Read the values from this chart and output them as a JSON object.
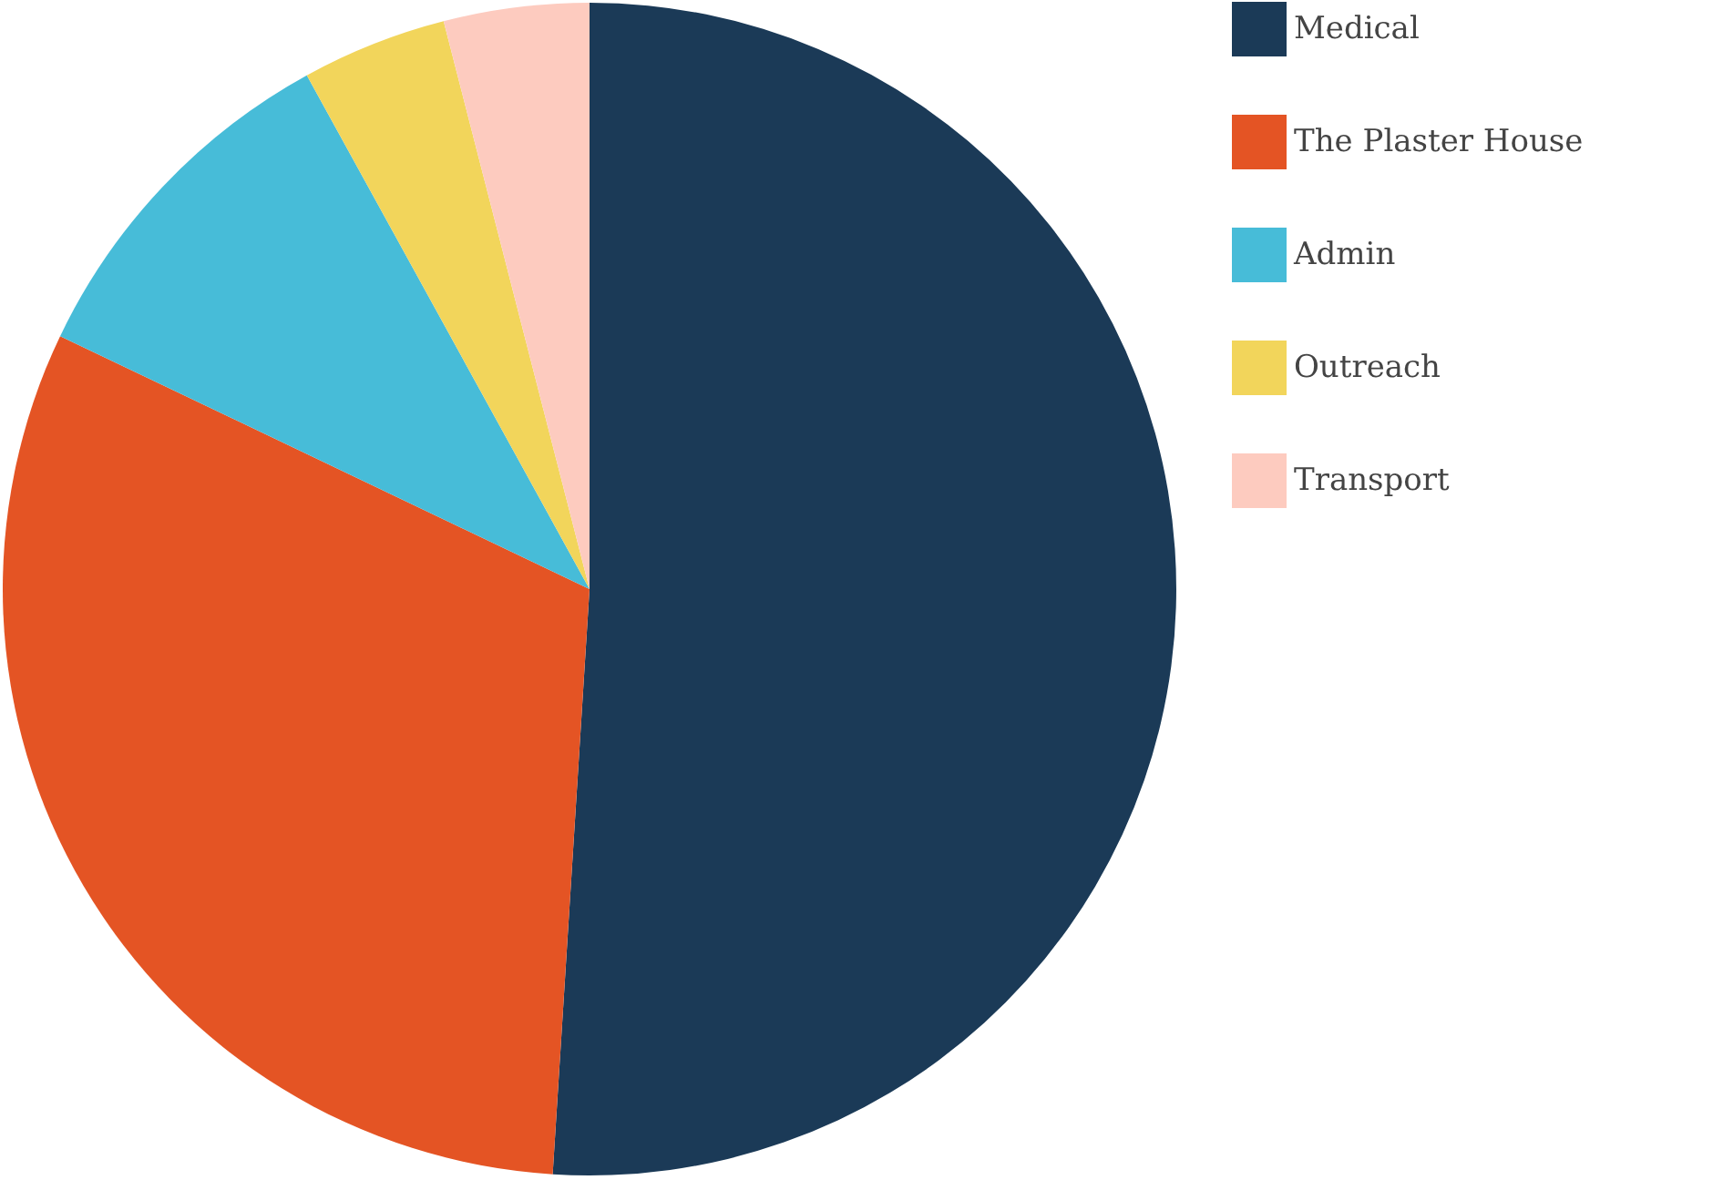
{
  "chart_data": {
    "type": "pie",
    "categories": [
      "Medical",
      "The Plaster House",
      "Admin",
      "Outreach",
      "Transport"
    ],
    "values": [
      51,
      31.1,
      9.9,
      4,
      4
    ],
    "colors": [
      "#1b3a57",
      "#e45424",
      "#47bcd8",
      "#f2d55b",
      "#fdcbbf"
    ],
    "legend": "right"
  }
}
